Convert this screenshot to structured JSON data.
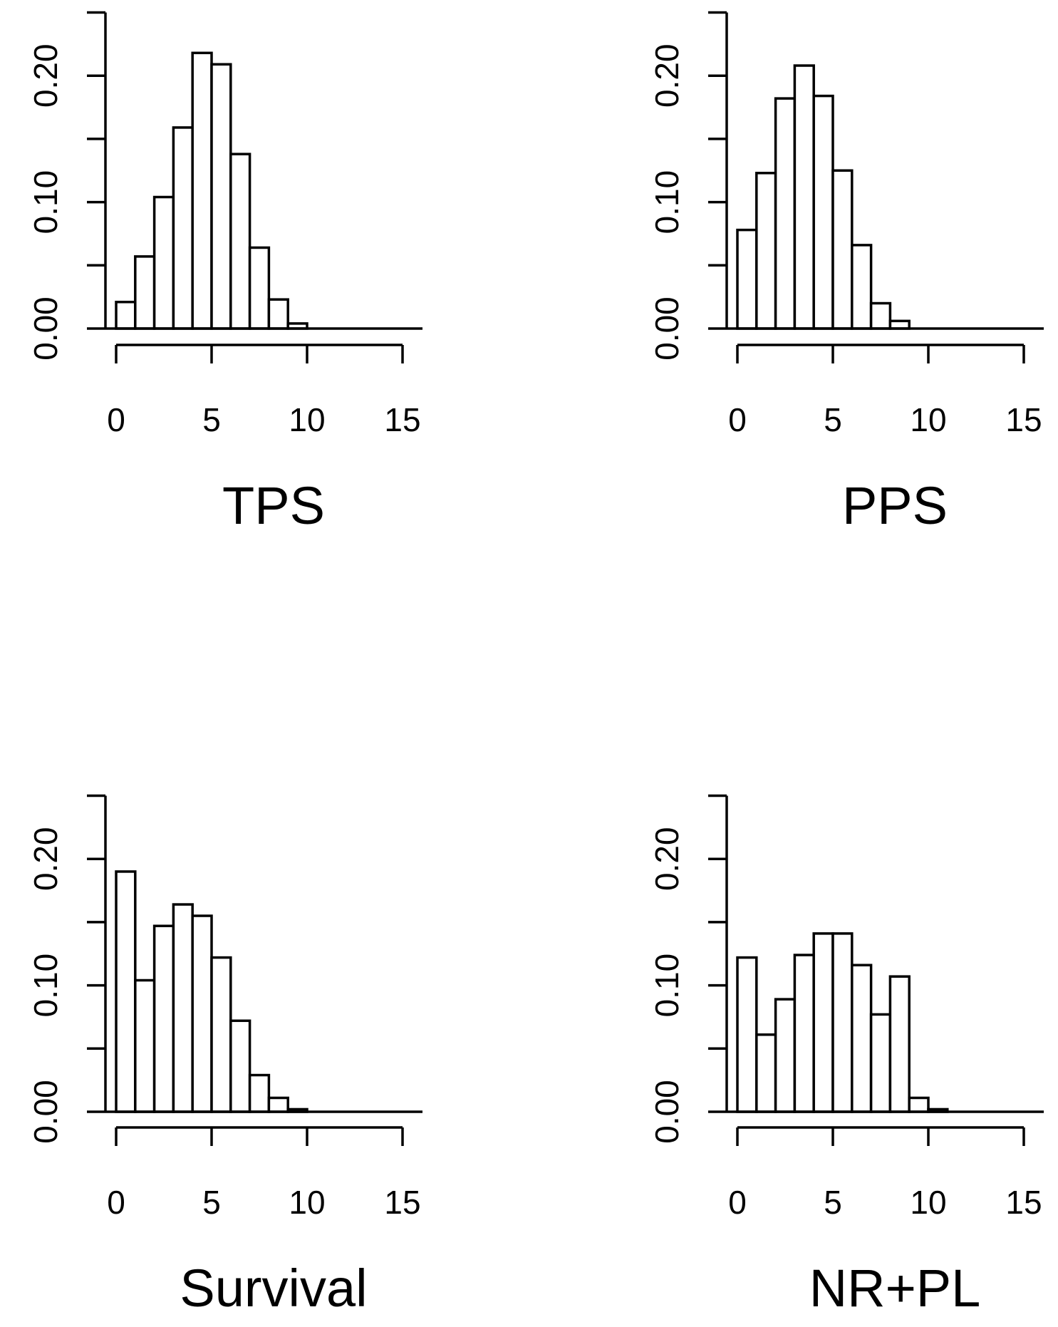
{
  "chart_data": [
    {
      "type": "bar",
      "title": "TPS",
      "xlabel": "TPS",
      "ylabel": "",
      "x_ticks": [
        0,
        5,
        10,
        15
      ],
      "y_ticks": [
        0.0,
        0.1,
        0.2
      ],
      "y_tick_labels": [
        "0.00",
        "0.10",
        "0.20"
      ],
      "xlim": [
        0,
        15
      ],
      "ylim": [
        0,
        0.25
      ],
      "bin_width": 1,
      "bin_start": 0,
      "values": [
        0.021,
        0.057,
        0.104,
        0.159,
        0.218,
        0.209,
        0.138,
        0.064,
        0.023,
        0.004
      ]
    },
    {
      "type": "bar",
      "title": "PPS",
      "xlabel": "PPS",
      "ylabel": "",
      "x_ticks": [
        0,
        5,
        10,
        15
      ],
      "y_ticks": [
        0.0,
        0.1,
        0.2
      ],
      "y_tick_labels": [
        "0.00",
        "0.10",
        "0.20"
      ],
      "xlim": [
        0,
        15
      ],
      "ylim": [
        0,
        0.25
      ],
      "bin_width": 1,
      "bin_start": 0,
      "values": [
        0.078,
        0.123,
        0.182,
        0.208,
        0.184,
        0.125,
        0.066,
        0.02,
        0.006
      ]
    },
    {
      "type": "bar",
      "title": "Survival",
      "xlabel": "Survival",
      "ylabel": "",
      "x_ticks": [
        0,
        5,
        10,
        15
      ],
      "y_ticks": [
        0.0,
        0.1,
        0.2
      ],
      "y_tick_labels": [
        "0.00",
        "0.10",
        "0.20"
      ],
      "xlim": [
        0,
        15
      ],
      "ylim": [
        0,
        0.25
      ],
      "bin_width": 1,
      "bin_start": 0,
      "values": [
        0.19,
        0.104,
        0.147,
        0.164,
        0.155,
        0.122,
        0.072,
        0.029,
        0.011,
        0.002
      ]
    },
    {
      "type": "bar",
      "title": "NR+PL",
      "xlabel": "NR+PL",
      "ylabel": "",
      "x_ticks": [
        0,
        5,
        10,
        15
      ],
      "y_ticks": [
        0.0,
        0.1,
        0.2
      ],
      "y_tick_labels": [
        "0.00",
        "0.10",
        "0.20"
      ],
      "xlim": [
        0,
        15
      ],
      "ylim": [
        0,
        0.25
      ],
      "bin_width": 1,
      "bin_start": 0,
      "values": [
        0.122,
        0.061,
        0.089,
        0.124,
        0.141,
        0.141,
        0.116,
        0.077,
        0.107,
        0.011,
        0.002
      ]
    }
  ]
}
